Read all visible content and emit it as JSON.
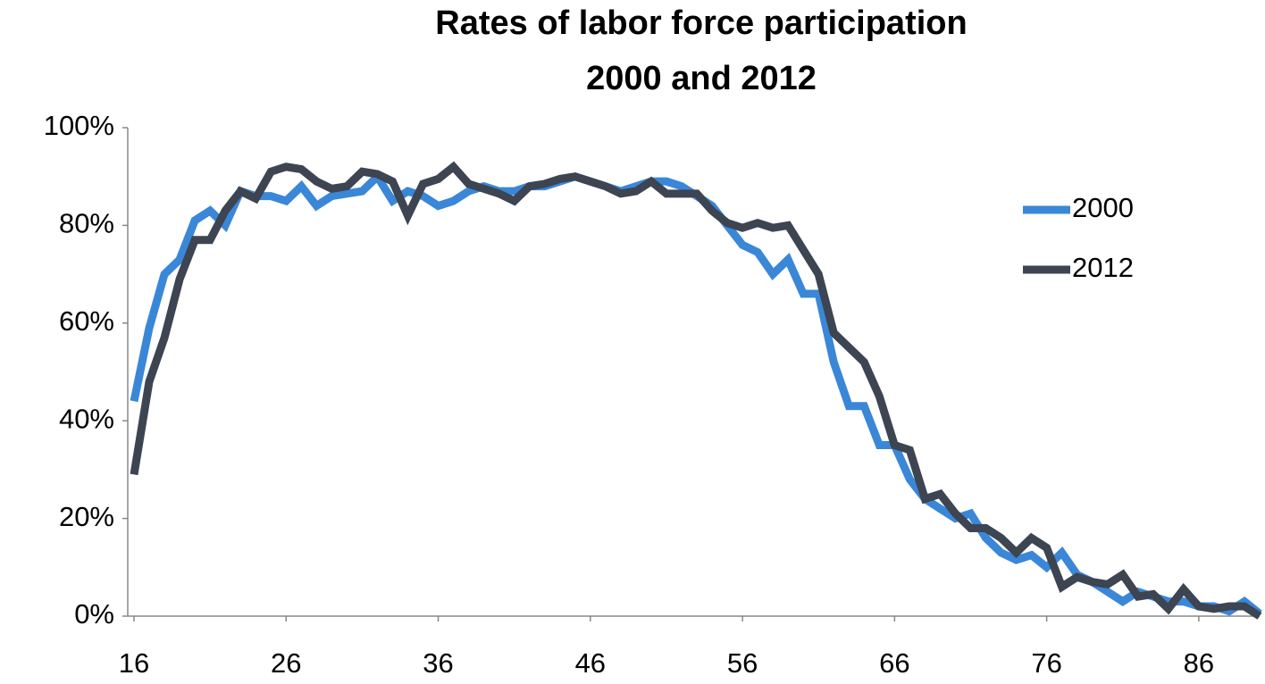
{
  "chart_data": {
    "type": "line",
    "title": [
      "Rates of labor force participation",
      "2000 and 2012"
    ],
    "x": [
      16,
      17,
      18,
      19,
      20,
      21,
      22,
      23,
      24,
      25,
      26,
      27,
      28,
      29,
      30,
      31,
      32,
      33,
      34,
      35,
      36,
      37,
      38,
      39,
      40,
      41,
      42,
      43,
      44,
      45,
      46,
      47,
      48,
      49,
      50,
      51,
      52,
      53,
      54,
      55,
      56,
      57,
      58,
      59,
      60,
      61,
      62,
      63,
      64,
      65,
      66,
      67,
      68,
      69,
      70,
      71,
      72,
      73,
      74,
      75,
      76,
      77,
      78,
      79,
      80,
      81,
      82,
      83,
      84,
      85,
      86,
      87,
      88,
      89,
      90
    ],
    "series": [
      {
        "name": "2000",
        "color": "#3a87d8",
        "values": [
          44,
          59,
          70,
          73,
          81,
          83,
          80,
          87,
          86,
          86,
          85,
          88,
          84,
          86,
          86.5,
          87,
          90,
          85,
          87,
          86,
          84,
          85,
          87,
          88,
          87,
          87,
          88,
          88,
          89,
          90,
          89,
          88,
          87,
          88,
          89,
          89,
          88,
          86,
          84,
          80,
          76,
          74.5,
          70,
          73,
          66,
          66,
          52,
          43,
          43,
          35,
          35,
          28,
          24,
          22,
          20,
          21,
          16,
          13,
          11.5,
          12.5,
          10,
          13,
          8.5,
          7,
          5,
          3,
          5,
          4,
          3,
          3,
          2,
          2,
          1,
          3,
          0.5
        ]
      },
      {
        "name": "2012",
        "color": "#3d4452",
        "values": [
          29,
          48,
          57,
          69,
          77,
          77,
          83,
          87,
          85.5,
          91,
          92,
          91.5,
          89,
          87.5,
          88,
          91,
          90.5,
          89,
          82,
          88.5,
          89.5,
          92,
          88.5,
          87.5,
          86.5,
          85,
          88,
          88.5,
          89.5,
          90,
          89,
          88,
          86.5,
          87,
          89,
          86.5,
          86.5,
          86.5,
          83,
          80.5,
          79.5,
          80.5,
          79.5,
          80,
          75,
          70,
          58,
          55,
          52,
          45,
          35,
          34,
          24,
          25,
          21,
          18,
          18,
          16,
          13,
          16,
          14,
          6,
          8,
          7,
          6.5,
          8.5,
          4,
          4.5,
          1.5,
          5.5,
          2,
          1.5,
          2,
          2,
          0
        ]
      }
    ],
    "xlim": [
      16,
      90
    ],
    "xticks": [
      16,
      26,
      36,
      46,
      56,
      66,
      76,
      86
    ],
    "ylim": [
      0,
      100
    ],
    "yticks": [
      {
        "value": 0,
        "label": "0%"
      },
      {
        "value": 20,
        "label": "20%"
      },
      {
        "value": 40,
        "label": "40%"
      },
      {
        "value": 60,
        "label": "60%"
      },
      {
        "value": 80,
        "label": "80%"
      },
      {
        "value": 100,
        "label": "100%"
      }
    ],
    "grid": false,
    "legend": "right"
  }
}
